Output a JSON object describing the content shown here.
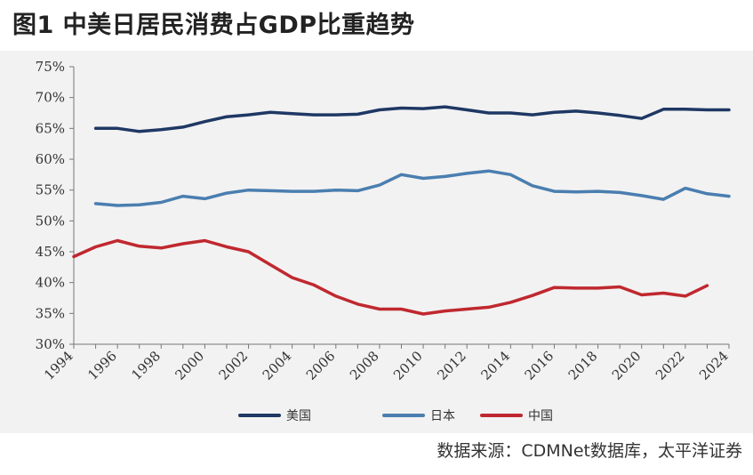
{
  "title": "图1  中美日居民消费占GDP比重趋势",
  "source": "数据来源：CDMNet数据库，太平洋证券",
  "chart_data": {
    "type": "line",
    "title": "图1  中美日居民消费占GDP比重趋势",
    "xlabel": "",
    "ylabel": "",
    "xlim": [
      1994,
      2024
    ],
    "ylim": [
      30,
      75
    ],
    "y_ticks": [
      30,
      35,
      40,
      45,
      50,
      55,
      60,
      65,
      70,
      75
    ],
    "y_tick_labels": [
      "30%",
      "35%",
      "40%",
      "45%",
      "50%",
      "55%",
      "60%",
      "65%",
      "70%",
      "75%"
    ],
    "x_ticks": [
      1994,
      1996,
      1998,
      2000,
      2002,
      2004,
      2006,
      2008,
      2010,
      2012,
      2014,
      2016,
      2018,
      2020,
      2022,
      2024
    ],
    "x_tick_labels": [
      "1994",
      "1996",
      "1998",
      "2000",
      "2002",
      "2004",
      "2006",
      "2008",
      "2010",
      "2012",
      "2014",
      "2016",
      "2018",
      "2020",
      "2022",
      "2024"
    ],
    "grid": false,
    "legend_position": "bottom-center",
    "series": [
      {
        "name": "美国",
        "color": "#1f3864",
        "x": [
          1995,
          1996,
          1997,
          1998,
          1999,
          2000,
          2001,
          2002,
          2003,
          2004,
          2005,
          2006,
          2007,
          2008,
          2009,
          2010,
          2011,
          2012,
          2013,
          2014,
          2015,
          2016,
          2017,
          2018,
          2019,
          2020,
          2021,
          2022,
          2023,
          2024
        ],
        "values": [
          65.0,
          65.0,
          64.5,
          64.8,
          65.2,
          66.1,
          66.9,
          67.2,
          67.6,
          67.4,
          67.2,
          67.2,
          67.3,
          68.0,
          68.3,
          68.2,
          68.5,
          68.0,
          67.5,
          67.5,
          67.2,
          67.6,
          67.8,
          67.5,
          67.1,
          66.6,
          68.1,
          68.1,
          68.0,
          68.0
        ]
      },
      {
        "name": "日本",
        "color": "#4a7eb0",
        "x": [
          1995,
          1996,
          1997,
          1998,
          1999,
          2000,
          2001,
          2002,
          2003,
          2004,
          2005,
          2006,
          2007,
          2008,
          2009,
          2010,
          2011,
          2012,
          2013,
          2014,
          2015,
          2016,
          2017,
          2018,
          2019,
          2020,
          2021,
          2022,
          2023,
          2024
        ],
        "values": [
          52.8,
          52.5,
          52.6,
          53.0,
          54.0,
          53.6,
          54.5,
          55.0,
          54.9,
          54.8,
          54.8,
          55.0,
          54.9,
          55.8,
          57.5,
          56.9,
          57.2,
          57.7,
          58.1,
          57.5,
          55.7,
          54.8,
          54.7,
          54.8,
          54.6,
          54.1,
          53.5,
          55.3,
          54.4,
          54.0
        ]
      },
      {
        "name": "中国",
        "color": "#c0282f",
        "x": [
          1994,
          1995,
          1996,
          1997,
          1998,
          1999,
          2000,
          2001,
          2002,
          2003,
          2004,
          2005,
          2006,
          2007,
          2008,
          2009,
          2010,
          2011,
          2012,
          2013,
          2014,
          2015,
          2016,
          2017,
          2018,
          2019,
          2020,
          2021,
          2022,
          2023
        ],
        "values": [
          44.2,
          45.8,
          46.8,
          45.9,
          45.6,
          46.3,
          46.8,
          45.8,
          45.0,
          42.9,
          40.8,
          39.6,
          37.8,
          36.5,
          35.7,
          35.7,
          34.9,
          35.4,
          35.7,
          36.0,
          36.8,
          37.9,
          39.2,
          39.1,
          39.1,
          39.3,
          38.0,
          38.3,
          37.8,
          39.5
        ]
      }
    ]
  }
}
